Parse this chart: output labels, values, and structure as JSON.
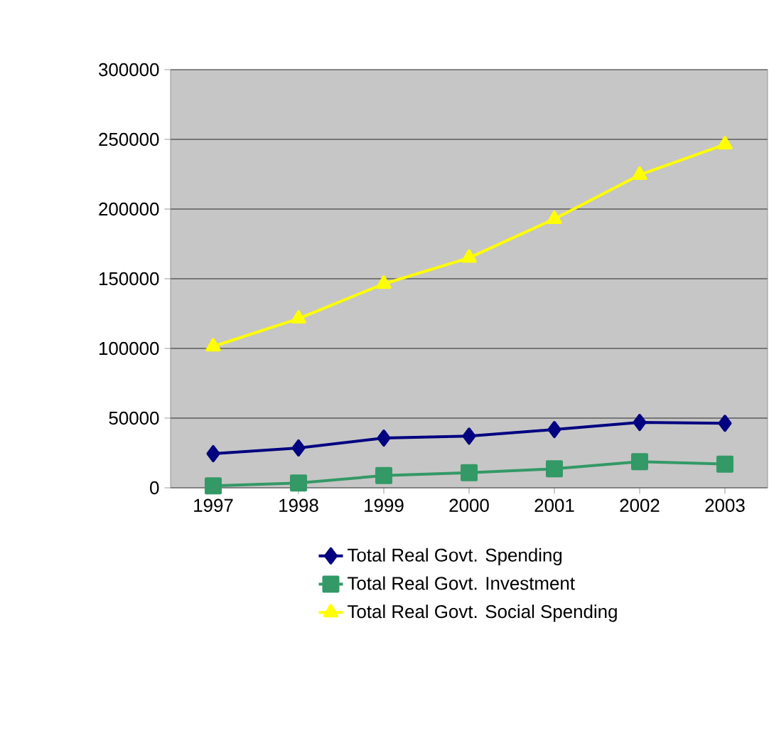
{
  "chart_data": {
    "type": "line",
    "categories": [
      "1997",
      "1998",
      "1999",
      "2000",
      "2001",
      "2002",
      "2003"
    ],
    "series": [
      {
        "name": "Total Real Govt. Spending",
        "color": "#000080",
        "marker": "diamond",
        "values": [
          24500,
          28600,
          35700,
          37100,
          41800,
          46900,
          46300
        ]
      },
      {
        "name": "Total Real Govt. Investment",
        "color": "#339966",
        "marker": "square",
        "values": [
          1400,
          3400,
          8800,
          10900,
          13600,
          18700,
          17000
        ]
      },
      {
        "name": "Total Real Govt. Social Spending",
        "color": "#ffff00",
        "marker": "triangle",
        "values": [
          101400,
          121400,
          146300,
          165000,
          192900,
          224500,
          246300
        ]
      }
    ],
    "ylim": [
      0,
      300000
    ],
    "yticks": [
      0,
      50000,
      100000,
      150000,
      200000,
      250000,
      300000
    ],
    "grid": "y",
    "legend": "bottom",
    "line_style": "solid"
  }
}
